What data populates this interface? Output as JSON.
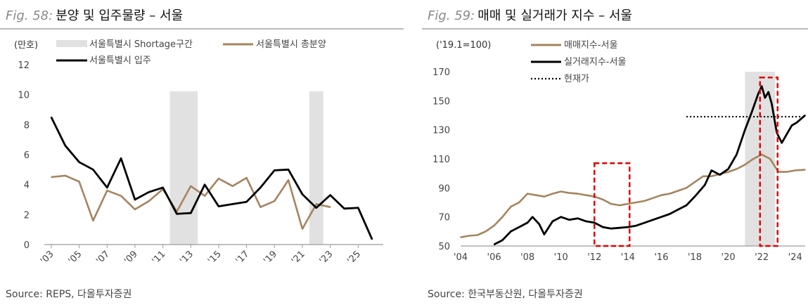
{
  "colors": {
    "gold": "#a5845e",
    "black": "#000000",
    "shade": "#e1e1e1",
    "red": "#e00000",
    "axis": "#9b9b9b"
  },
  "left": {
    "fig_no": "Fig. 58:",
    "fig_text": "분양 및 입주물량 – 서울",
    "source": "Source: REPS, 다올투자증권",
    "chart_data": {
      "type": "line",
      "unit_label": "(만호)",
      "ylim": [
        0,
        12
      ],
      "yticks": [
        0,
        2,
        4,
        6,
        8,
        10,
        12
      ],
      "xlim": [
        2002.5,
        2026.8
      ],
      "xticks": [
        "'03",
        "'05",
        "'07",
        "'09",
        "'11",
        "'13",
        "'15",
        "'17",
        "'19",
        "'21",
        "'23",
        "'25"
      ],
      "xtick_values": [
        2003,
        2005,
        2007,
        2009,
        2011,
        2013,
        2015,
        2017,
        2019,
        2021,
        2023,
        2025
      ],
      "legend": [
        "서울특별시 Shortage구간",
        "서울특별시 총분양",
        "서울특별시 입주"
      ],
      "shortage_ranges": [
        [
          2012,
          2014
        ],
        [
          2022,
          2023
        ]
      ],
      "series": [
        {
          "name": "서울특별시 총분양",
          "color": "gold",
          "x": [
            2003,
            2004,
            2005,
            2006,
            2007,
            2008,
            2009,
            2010,
            2011,
            2012,
            2013,
            2014,
            2015,
            2016,
            2017,
            2018,
            2019,
            2020,
            2021,
            2022,
            2023
          ],
          "values": [
            4.5,
            4.6,
            4.2,
            1.6,
            3.6,
            3.25,
            2.35,
            2.9,
            3.7,
            2.2,
            3.9,
            3.25,
            4.4,
            3.9,
            4.45,
            2.5,
            2.9,
            4.3,
            1.05,
            2.7,
            2.5
          ]
        },
        {
          "name": "서울특별시 입주",
          "color": "black",
          "x": [
            2003,
            2004,
            2005,
            2006,
            2007,
            2008,
            2009,
            2010,
            2011,
            2012,
            2013,
            2014,
            2015,
            2016,
            2017,
            2018,
            2019,
            2020,
            2021,
            2022,
            2023,
            2024,
            2025,
            2026
          ],
          "values": [
            8.5,
            6.6,
            5.5,
            5.0,
            3.8,
            5.75,
            3.0,
            3.5,
            3.8,
            2.05,
            2.1,
            4.0,
            2.55,
            2.7,
            2.85,
            3.8,
            4.95,
            5.0,
            3.35,
            2.45,
            3.3,
            2.4,
            2.45,
            0.35
          ]
        }
      ]
    }
  },
  "right": {
    "fig_no": "Fig. 59:",
    "fig_text": "매매 및 실거래가 지수 – 서울",
    "source": "Source: 한국부동산원, 다올투자증권",
    "chart_data": {
      "type": "line",
      "unit_label": "('19.1=100)",
      "ylim": [
        50,
        170
      ],
      "yticks": [
        50,
        70,
        90,
        110,
        130,
        150,
        170
      ],
      "xlim": [
        2004,
        2024.6
      ],
      "xticks": [
        "'04",
        "'06",
        "'08",
        "'10",
        "'12",
        "'14",
        "'16",
        "'18",
        "'20",
        "'22",
        "'24"
      ],
      "xtick_values": [
        2004,
        2006,
        2008,
        2010,
        2012,
        2014,
        2016,
        2018,
        2020,
        2022,
        2024
      ],
      "legend": [
        "매매지수-서울",
        "실거래지수-서울",
        "현재가"
      ],
      "shaded_range": [
        2021,
        2022.8
      ],
      "highlight_boxes": [
        [
          2012.0,
          2014.1,
          50,
          107
        ],
        [
          2021.9,
          2022.95,
          50,
          166
        ]
      ],
      "current_level": {
        "name": "현재가",
        "value": 139,
        "x_from": 2017.5,
        "x_to": 2024.6
      },
      "series": [
        {
          "name": "매매지수-서울",
          "color": "gold",
          "x": [
            2004,
            2004.5,
            2005,
            2005.5,
            2006,
            2006.5,
            2007,
            2007.5,
            2008,
            2008.5,
            2009,
            2009.5,
            2010,
            2010.5,
            2011,
            2011.5,
            2012,
            2012.5,
            2013,
            2013.5,
            2014,
            2014.5,
            2015,
            2015.5,
            2016,
            2016.5,
            2017,
            2017.5,
            2018,
            2018.5,
            2019,
            2019.5,
            2020,
            2020.5,
            2021,
            2021.5,
            2022,
            2022.5,
            2023,
            2023.5,
            2024,
            2024.6
          ],
          "values": [
            56,
            57,
            57.5,
            60,
            64,
            70,
            77,
            80,
            86,
            85,
            84,
            86,
            87.5,
            86.5,
            86,
            85,
            84,
            82,
            79,
            78,
            79,
            80,
            81,
            83,
            85,
            86,
            88,
            90,
            94,
            98,
            98,
            99.5,
            101,
            103,
            106,
            110,
            113,
            110,
            101,
            101,
            102,
            102.5
          ]
        },
        {
          "name": "실거래지수-서울",
          "color": "black",
          "x": [
            2006,
            2006.5,
            2007,
            2007.5,
            2008,
            2008.3,
            2008.7,
            2009,
            2009.5,
            2010,
            2010.5,
            2011,
            2011.5,
            2012,
            2012.5,
            2013,
            2013.5,
            2014,
            2014.5,
            2015,
            2015.5,
            2016,
            2016.5,
            2017,
            2017.5,
            2018,
            2018.3,
            2018.6,
            2019,
            2019.5,
            2020,
            2020.5,
            2021,
            2021.4,
            2021.8,
            2022,
            2022.2,
            2022.4,
            2022.6,
            2022.9,
            2023.2,
            2023.5,
            2023.8,
            2024.1,
            2024.6
          ],
          "values": [
            51,
            54,
            60,
            63,
            66,
            70,
            65,
            58,
            67,
            70,
            68,
            69,
            67,
            66,
            63,
            62,
            62.5,
            63,
            64,
            66,
            68,
            70,
            72,
            75,
            78,
            84,
            88,
            92,
            102,
            99,
            103,
            113,
            130,
            142,
            155,
            160,
            152,
            156,
            148,
            128,
            121,
            127,
            133,
            135,
            140
          ]
        }
      ]
    }
  }
}
